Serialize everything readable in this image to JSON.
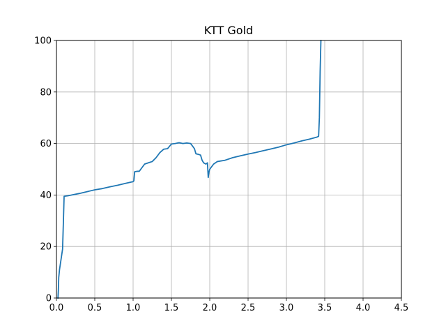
{
  "chart_data": {
    "type": "line",
    "title": "KTT Gold",
    "xlabel": "",
    "ylabel": "",
    "xlim": [
      0,
      4.5
    ],
    "ylim": [
      0,
      100
    ],
    "grid": true,
    "x_ticks": [
      "0.0",
      "0.5",
      "1.0",
      "1.5",
      "2.0",
      "2.5",
      "3.0",
      "3.5",
      "4.0",
      "4.5"
    ],
    "y_ticks": [
      "0",
      "20",
      "40",
      "60",
      "80",
      "100"
    ],
    "series": [
      {
        "color": "#1f77b4",
        "points": [
          [
            0.02,
            0
          ],
          [
            0.025,
            3
          ],
          [
            0.03,
            8
          ],
          [
            0.04,
            11
          ],
          [
            0.05,
            13
          ],
          [
            0.06,
            15
          ],
          [
            0.07,
            17
          ],
          [
            0.08,
            19
          ],
          [
            0.09,
            29
          ],
          [
            0.1,
            39.5
          ],
          [
            0.15,
            39.7
          ],
          [
            0.2,
            40.0
          ],
          [
            0.3,
            40.6
          ],
          [
            0.4,
            41.3
          ],
          [
            0.5,
            42.0
          ],
          [
            0.6,
            42.5
          ],
          [
            0.7,
            43.2
          ],
          [
            0.8,
            43.8
          ],
          [
            0.9,
            44.5
          ],
          [
            1.0,
            45.2
          ],
          [
            1.01,
            45.5
          ],
          [
            1.02,
            49.0
          ],
          [
            1.05,
            49.2
          ],
          [
            1.08,
            49.2
          ],
          [
            1.1,
            50.0
          ],
          [
            1.15,
            52.0
          ],
          [
            1.2,
            52.5
          ],
          [
            1.25,
            53.0
          ],
          [
            1.3,
            54.5
          ],
          [
            1.35,
            56.5
          ],
          [
            1.4,
            57.8
          ],
          [
            1.45,
            58.0
          ],
          [
            1.5,
            59.8
          ],
          [
            1.55,
            60.0
          ],
          [
            1.6,
            60.3
          ],
          [
            1.65,
            60.0
          ],
          [
            1.7,
            60.2
          ],
          [
            1.75,
            60.0
          ],
          [
            1.8,
            58.0
          ],
          [
            1.82,
            56.0
          ],
          [
            1.85,
            55.8
          ],
          [
            1.88,
            55.5
          ],
          [
            1.9,
            53.5
          ],
          [
            1.92,
            52.5
          ],
          [
            1.95,
            52.0
          ],
          [
            1.97,
            52.5
          ],
          [
            1.98,
            46.8
          ],
          [
            1.99,
            49.0
          ],
          [
            2.0,
            50.0
          ],
          [
            2.05,
            52.0
          ],
          [
            2.1,
            53.0
          ],
          [
            2.2,
            53.5
          ],
          [
            2.3,
            54.5
          ],
          [
            2.4,
            55.2
          ],
          [
            2.5,
            55.9
          ],
          [
            2.6,
            56.5
          ],
          [
            2.7,
            57.2
          ],
          [
            2.8,
            57.9
          ],
          [
            2.9,
            58.6
          ],
          [
            3.0,
            59.5
          ],
          [
            3.1,
            60.2
          ],
          [
            3.2,
            61.0
          ],
          [
            3.3,
            61.7
          ],
          [
            3.4,
            62.5
          ],
          [
            3.42,
            62.8
          ],
          [
            3.43,
            70.0
          ],
          [
            3.44,
            88.0
          ],
          [
            3.45,
            100.0
          ]
        ]
      }
    ]
  }
}
